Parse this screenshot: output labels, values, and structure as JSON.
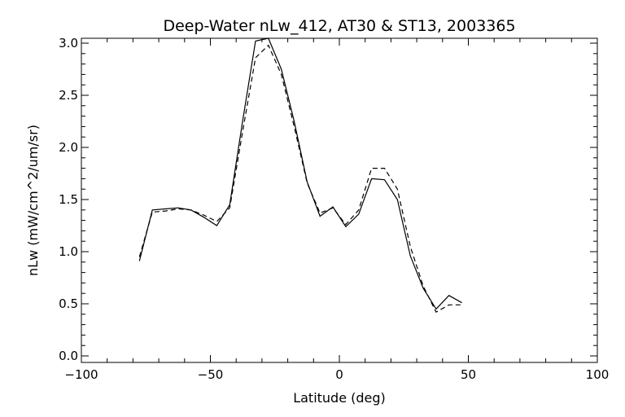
{
  "chart_data": {
    "type": "line",
    "title": "Deep-Water nLw_412, AT30 & ST13, 2003365",
    "xlabel": "Latitude (deg)",
    "ylabel": "nLw (mW/cm^2/um/sr)",
    "xlim": [
      -100,
      100
    ],
    "ylim": [
      0.0,
      3.0
    ],
    "xticks": [
      -100,
      -50,
      0,
      50,
      100
    ],
    "xtick_labels": [
      "−100",
      "−50",
      "0",
      "50",
      "100"
    ],
    "yticks": [
      0.0,
      0.5,
      1.0,
      1.5,
      2.0,
      2.5,
      3.0
    ],
    "ytick_labels": [
      "0.0",
      "0.5",
      "1.0",
      "1.5",
      "2.0",
      "2.5",
      "3.0"
    ],
    "grid": false,
    "series": [
      {
        "style": "solid",
        "x": [
          -77.5,
          -72.5,
          -67.5,
          -62.5,
          -57.5,
          -52.5,
          -47.5,
          -42.5,
          -37.5,
          -32.5,
          -27.5,
          -22.5,
          -17.5,
          -12.5,
          -7.5,
          -2.5,
          2.5,
          7.5,
          12.5,
          17.5,
          22.5,
          27.5,
          32.5,
          37.5,
          42.5,
          47.5
        ],
        "y": [
          0.91,
          1.4,
          1.41,
          1.42,
          1.4,
          1.33,
          1.25,
          1.45,
          2.25,
          3.02,
          3.05,
          2.75,
          2.25,
          1.67,
          1.34,
          1.43,
          1.24,
          1.36,
          1.7,
          1.69,
          1.5,
          0.96,
          0.65,
          0.45,
          0.58,
          0.51
        ]
      },
      {
        "style": "dashed",
        "x": [
          -77.5,
          -72.5,
          -67.5,
          -62.5,
          -57.5,
          -52.5,
          -47.5,
          -42.5,
          -37.5,
          -32.5,
          -27.5,
          -22.5,
          -17.5,
          -12.5,
          -7.5,
          -2.5,
          2.5,
          7.5,
          12.5,
          17.5,
          22.5,
          27.5,
          32.5,
          37.5,
          42.5,
          47.5
        ],
        "y": [
          0.95,
          1.38,
          1.39,
          1.41,
          1.4,
          1.35,
          1.29,
          1.42,
          2.15,
          2.86,
          2.98,
          2.7,
          2.2,
          1.66,
          1.37,
          1.42,
          1.26,
          1.4,
          1.8,
          1.8,
          1.6,
          1.05,
          0.67,
          0.42,
          0.49,
          0.49
        ]
      }
    ]
  }
}
